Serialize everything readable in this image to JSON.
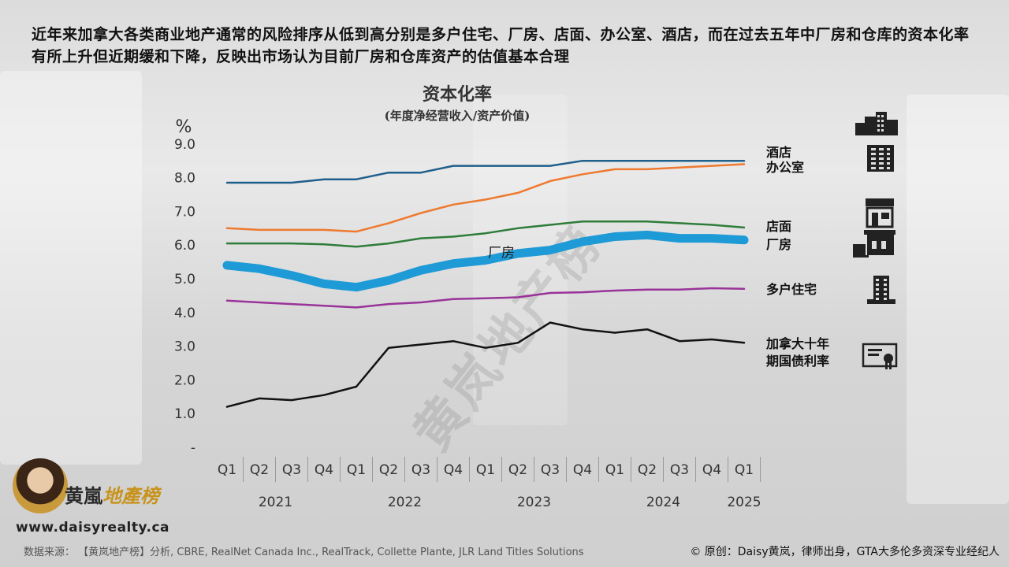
{
  "headline": "近年来加拿大各类商业地产通常的风险排序从低到高分别是多户住宅、厂房、店面、办公室、酒店，而在过去五年中厂房和仓库的资本化率有所上升但近期缓和下降，反映出市场认为目前厂房和仓库资产的估值基本合理",
  "watermark": "黄岚地产榜",
  "logo": {
    "brand_a": "黄嵐",
    "brand_b": "地產榜",
    "url": "www.daisyrealty.ca"
  },
  "footer": {
    "source": "数据来源：  【黄岚地产榜】分析, CBRE, RealNet Canada Inc., RealTrack, Collette Plante, JLR Land Titles Solutions",
    "credit": "© 原创：Daisy黄岚，律师出身，GTA大多伦多资深专业经纪人"
  },
  "chart_data": {
    "type": "line",
    "title": "资本化率",
    "subtitle": "(年度净经营收入/资产价值)",
    "ylabel": "%",
    "ylim": [
      0,
      9
    ],
    "yticks": [
      "-",
      "1.0",
      "2.0",
      "3.0",
      "4.0",
      "5.0",
      "6.0",
      "7.0",
      "8.0",
      "9.0"
    ],
    "categories": [
      "Q1",
      "Q2",
      "Q3",
      "Q4",
      "Q1",
      "Q2",
      "Q3",
      "Q4",
      "Q1",
      "Q2",
      "Q3",
      "Q4",
      "Q1",
      "Q2",
      "Q3",
      "Q4",
      "Q1"
    ],
    "years": [
      {
        "label": "2021",
        "start": 0,
        "end": 3
      },
      {
        "label": "2022",
        "start": 4,
        "end": 7
      },
      {
        "label": "2023",
        "start": 8,
        "end": 11
      },
      {
        "label": "2024",
        "start": 12,
        "end": 15
      },
      {
        "label": "2025",
        "start": 16,
        "end": 16
      }
    ],
    "series": [
      {
        "name": "酒店",
        "color": "#1f5f8b",
        "width": 2.5,
        "values": [
          7.85,
          7.85,
          7.85,
          7.95,
          7.95,
          8.15,
          8.15,
          8.35,
          8.35,
          8.35,
          8.35,
          8.5,
          8.5,
          8.5,
          8.5,
          8.5,
          8.5
        ]
      },
      {
        "name": "办公室",
        "color": "#ee7a2f",
        "width": 2.5,
        "values": [
          6.5,
          6.45,
          6.45,
          6.45,
          6.4,
          6.65,
          6.95,
          7.2,
          7.35,
          7.55,
          7.9,
          8.1,
          8.25,
          8.25,
          8.3,
          8.35,
          8.4
        ]
      },
      {
        "name": "店面",
        "color": "#2e7d3a",
        "width": 2.5,
        "values": [
          6.05,
          6.05,
          6.05,
          6.02,
          5.95,
          6.05,
          6.2,
          6.25,
          6.35,
          6.5,
          6.6,
          6.7,
          6.7,
          6.7,
          6.65,
          6.6,
          6.52
        ]
      },
      {
        "name": "厂房",
        "color": "#1e9ad6",
        "width": 11,
        "inline_label": "厂房",
        "values": [
          5.4,
          5.3,
          5.1,
          4.85,
          4.75,
          4.95,
          5.25,
          5.45,
          5.55,
          5.75,
          5.85,
          6.1,
          6.25,
          6.3,
          6.2,
          6.2,
          6.15
        ]
      },
      {
        "name": "多户住宅",
        "color": "#993399",
        "width": 2.5,
        "values": [
          4.35,
          4.3,
          4.25,
          4.2,
          4.15,
          4.25,
          4.3,
          4.4,
          4.42,
          4.45,
          4.58,
          4.6,
          4.65,
          4.68,
          4.68,
          4.72,
          4.7
        ]
      },
      {
        "name": "加拿大十年期国债利率",
        "color": "#111111",
        "width": 2.5,
        "values": [
          1.2,
          1.45,
          1.4,
          1.55,
          1.8,
          2.95,
          3.05,
          3.15,
          2.95,
          3.1,
          3.7,
          3.5,
          3.4,
          3.5,
          3.15,
          3.2,
          3.1
        ]
      }
    ],
    "legend": [
      {
        "text": "酒店",
        "icon": "hotel-icon"
      },
      {
        "text": "办公室",
        "icon": "office-building-icon"
      },
      {
        "text": "店面",
        "icon": "storefront-icon"
      },
      {
        "text": "厂房",
        "icon": "factory-icon"
      },
      {
        "text": "多户住宅",
        "icon": "apartment-icon"
      },
      {
        "text": "加拿大十年期国债利率",
        "icon": "certificate-icon"
      }
    ]
  }
}
